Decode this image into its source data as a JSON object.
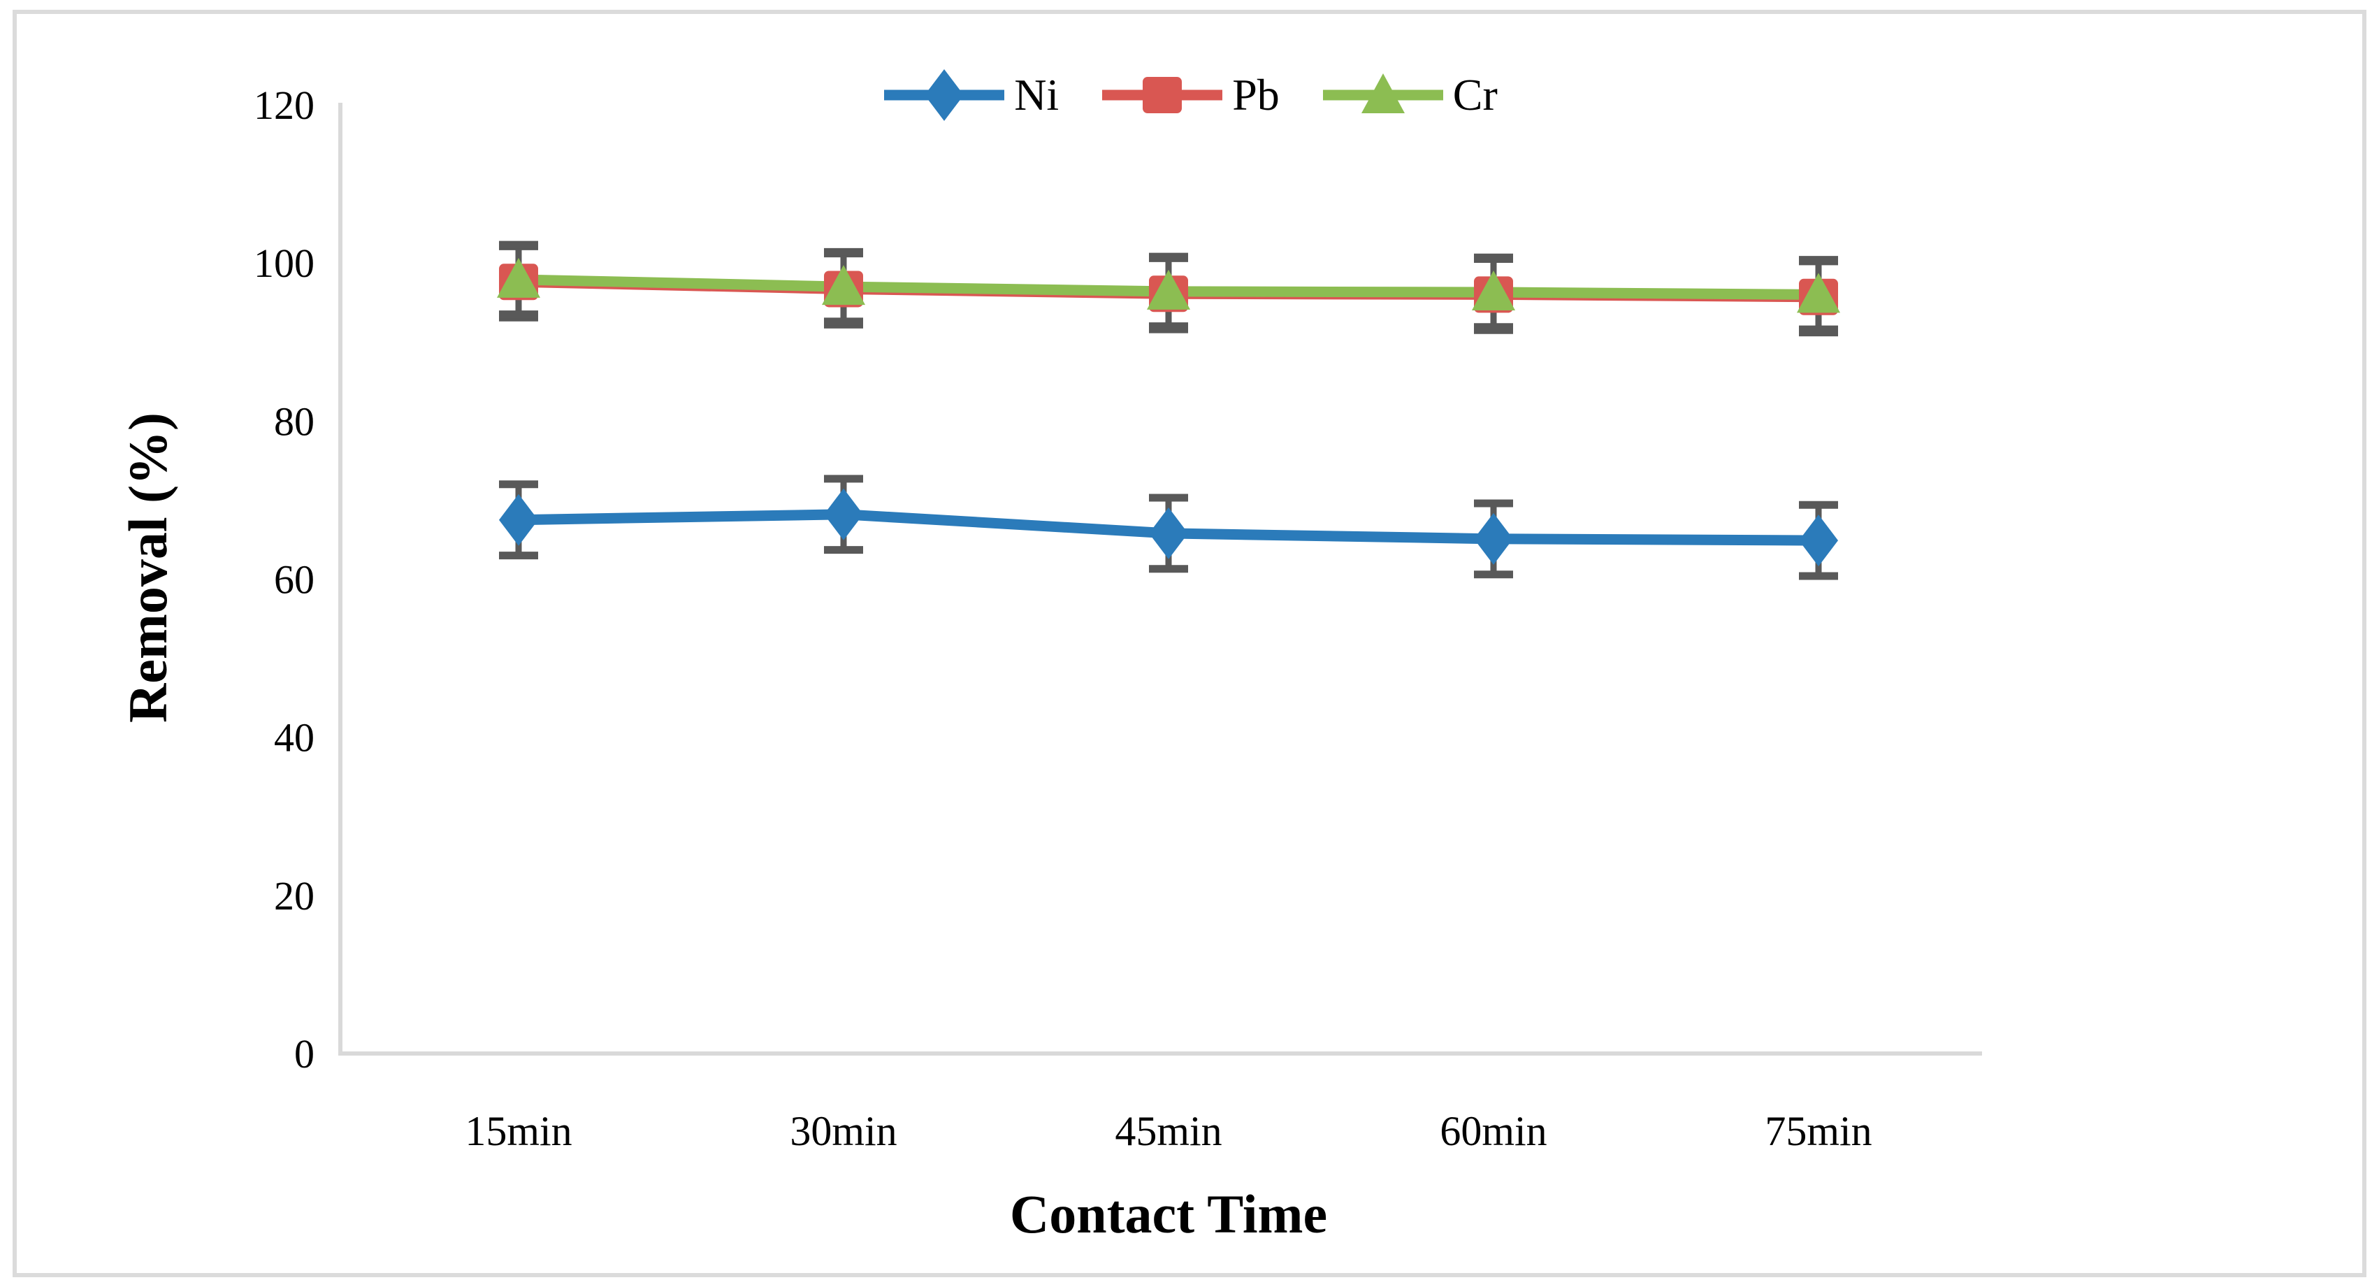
{
  "figure": {
    "background_color": "#ffffff",
    "border_color": "#DBDBDB"
  },
  "legend": {
    "position": "top-center",
    "items": [
      {
        "label": "Ni",
        "marker": "diamond",
        "color": "#2B7BBA"
      },
      {
        "label": "Pb",
        "marker": "square",
        "color": "#D95752"
      },
      {
        "label": "Cr",
        "marker": "triangle",
        "color": "#8CBD52"
      }
    ]
  },
  "chart_data": {
    "type": "line",
    "title": "",
    "xlabel": "Contact Time",
    "ylabel": "Removal (%)",
    "categories": [
      "15min",
      "30min",
      "45min",
      "60min",
      "75min"
    ],
    "series": [
      {
        "name": "Ni",
        "marker": "diamond",
        "color": "#2B7BBA",
        "values": [
          67.5,
          68.2,
          65.8,
          65.1,
          64.9
        ],
        "error": 4.5
      },
      {
        "name": "Pb",
        "marker": "square",
        "color": "#D95752",
        "values": [
          97.6,
          96.7,
          96.1,
          96.0,
          95.7
        ],
        "error": 4.5
      },
      {
        "name": "Cr",
        "marker": "triangle",
        "color": "#8CBD52",
        "values": [
          97.9,
          97.0,
          96.4,
          96.3,
          96.0
        ],
        "error": 4.4
      }
    ],
    "ylim": [
      0,
      120
    ],
    "y_ticks": [
      0,
      20,
      40,
      60,
      80,
      100,
      120
    ],
    "grid": false,
    "legend_position": "top-center",
    "error_bar_color": "#595959",
    "axis_line_color": "#D9D9D9"
  }
}
